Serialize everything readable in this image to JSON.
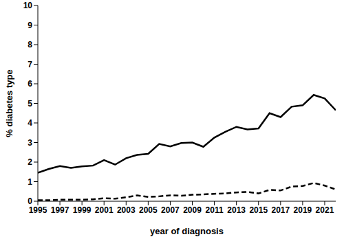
{
  "chart_data": {
    "type": "line",
    "x_label": "year of diagnosis",
    "y_label": "% diabetes type",
    "x": [
      1995,
      1996,
      1997,
      1998,
      1999,
      2000,
      2001,
      2002,
      2003,
      2004,
      2005,
      2006,
      2007,
      2008,
      2009,
      2010,
      2011,
      2012,
      2013,
      2014,
      2015,
      2016,
      2017,
      2018,
      2019,
      2020,
      2021,
      2022
    ],
    "series": [
      {
        "color": "#000000",
        "line_style": "solid",
        "values": [
          1.45,
          1.65,
          1.8,
          1.7,
          1.78,
          1.82,
          2.1,
          1.87,
          2.2,
          2.37,
          2.42,
          2.93,
          2.8,
          2.97,
          3.0,
          2.78,
          3.25,
          3.55,
          3.8,
          3.67,
          3.72,
          4.5,
          4.3,
          4.83,
          4.9,
          5.43,
          5.25,
          4.65
        ]
      },
      {
        "color": "#000000",
        "line_style": "dashed",
        "values": [
          0.05,
          0.05,
          0.08,
          0.08,
          0.08,
          0.1,
          0.15,
          0.13,
          0.2,
          0.3,
          0.22,
          0.25,
          0.3,
          0.28,
          0.33,
          0.35,
          0.38,
          0.4,
          0.45,
          0.48,
          0.4,
          0.58,
          0.55,
          0.75,
          0.78,
          0.93,
          0.8,
          0.6
        ]
      }
    ],
    "xlim": [
      1995,
      2022
    ],
    "ylim": [
      0,
      10
    ],
    "xticks": [
      1995,
      1997,
      1999,
      2001,
      2003,
      2005,
      2007,
      2009,
      2011,
      2013,
      2015,
      2017,
      2019,
      2021
    ],
    "yticks": [
      0,
      1,
      2,
      3,
      4,
      5,
      6,
      7,
      8,
      9,
      10
    ],
    "grid": false
  }
}
